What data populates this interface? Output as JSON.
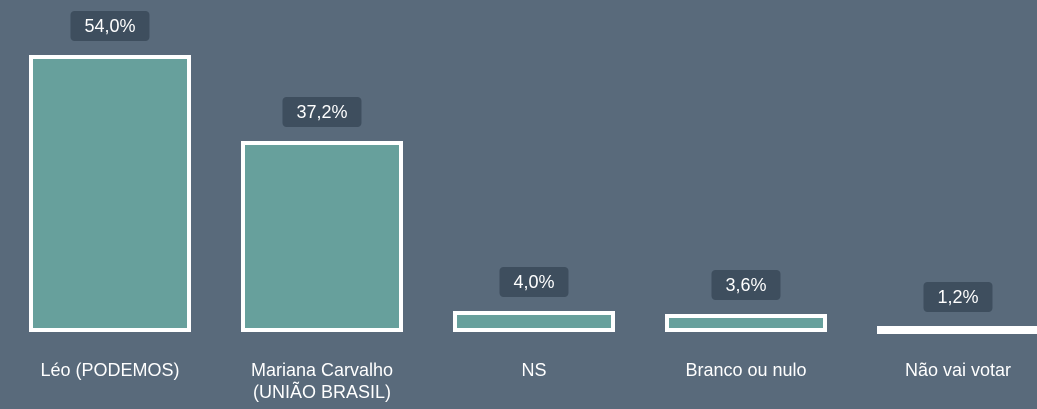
{
  "chart_data": {
    "type": "bar",
    "categories": [
      "Léo (PODEMOS)",
      "Mariana Carvalho (UNIÃO BRASIL)",
      "NS",
      "Branco ou nulo",
      "Não vai votar"
    ],
    "values": [
      54.0,
      37.2,
      4.0,
      3.6,
      1.2
    ],
    "value_labels": [
      "54,0%",
      "37,2%",
      "4,0%",
      "3,6%",
      "1,2%"
    ],
    "color": "#67a09c"
  }
}
